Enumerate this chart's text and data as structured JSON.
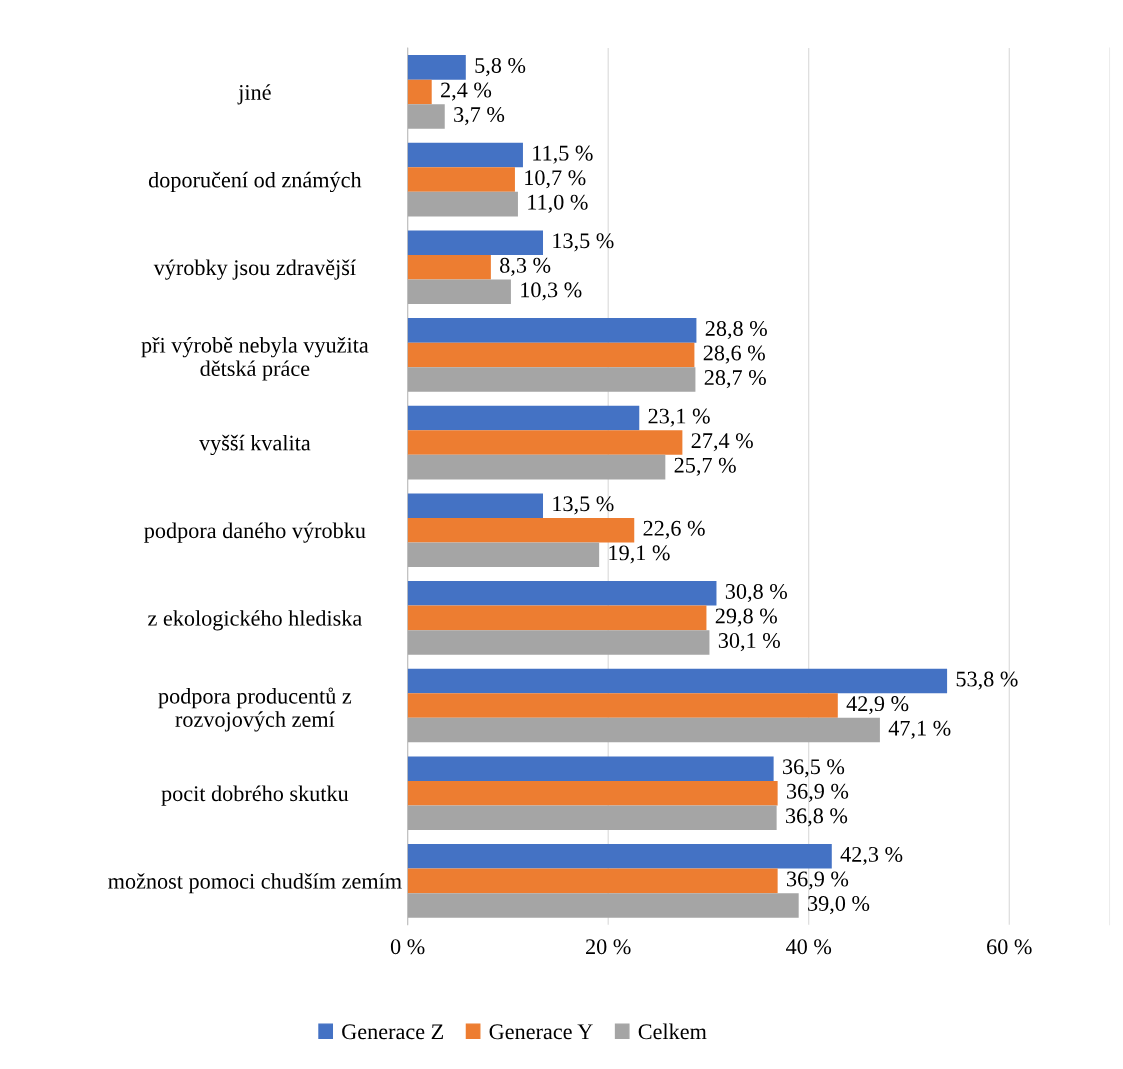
{
  "chart_data": {
    "type": "bar",
    "orientation": "horizontal",
    "categories": [
      "jiné",
      "doporučení od známých",
      "výrobky jsou zdravější",
      "při výrobě nebyla využita\ndětská práce",
      "vyšší kvalita",
      "podpora daného výrobku",
      "z ekologického hlediska",
      "podpora producentů z\nrozvojových zemí",
      "pocit dobrého skutku",
      "možnost pomoci chudším zemím"
    ],
    "series": [
      {
        "name": "Generace Z",
        "color": "#4472c4",
        "values": [
          5.8,
          11.5,
          13.5,
          28.8,
          23.1,
          13.5,
          30.8,
          53.8,
          36.5,
          42.3
        ],
        "value_labels": [
          "5,8 %",
          "11,5 %",
          "13,5 %",
          "28,8 %",
          "23,1 %",
          "13,5 %",
          "30,8 %",
          "53,8 %",
          "36,5 %",
          "42,3 %"
        ]
      },
      {
        "name": "Generace Y",
        "color": "#ed7d31",
        "values": [
          2.4,
          10.7,
          8.3,
          28.6,
          27.4,
          22.6,
          29.8,
          42.9,
          36.9,
          36.9
        ],
        "value_labels": [
          "2,4 %",
          "10,7 %",
          "8,3 %",
          "28,6 %",
          "27,4 %",
          "22,6 %",
          "29,8 %",
          "42,9 %",
          "36,9 %",
          "36,9 %"
        ]
      },
      {
        "name": "Celkem",
        "color": "#a5a5a5",
        "values": [
          3.7,
          11.0,
          10.3,
          28.7,
          25.7,
          19.1,
          30.1,
          47.1,
          36.8,
          39.0
        ],
        "value_labels": [
          "3,7 %",
          "11,0 %",
          "10,3 %",
          "28,7 %",
          "25,7 %",
          "19,1 %",
          "30,1 %",
          "47,1 %",
          "36,8 %",
          "39,0 %"
        ]
      }
    ],
    "xlim": [
      0,
      70
    ],
    "xticks": [
      {
        "value": 0,
        "label": "0 %"
      },
      {
        "value": 20,
        "label": "20 %"
      },
      {
        "value": 40,
        "label": "40 %"
      },
      {
        "value": 60,
        "label": "60 %"
      }
    ],
    "grid": "x",
    "legend": "bottom"
  }
}
